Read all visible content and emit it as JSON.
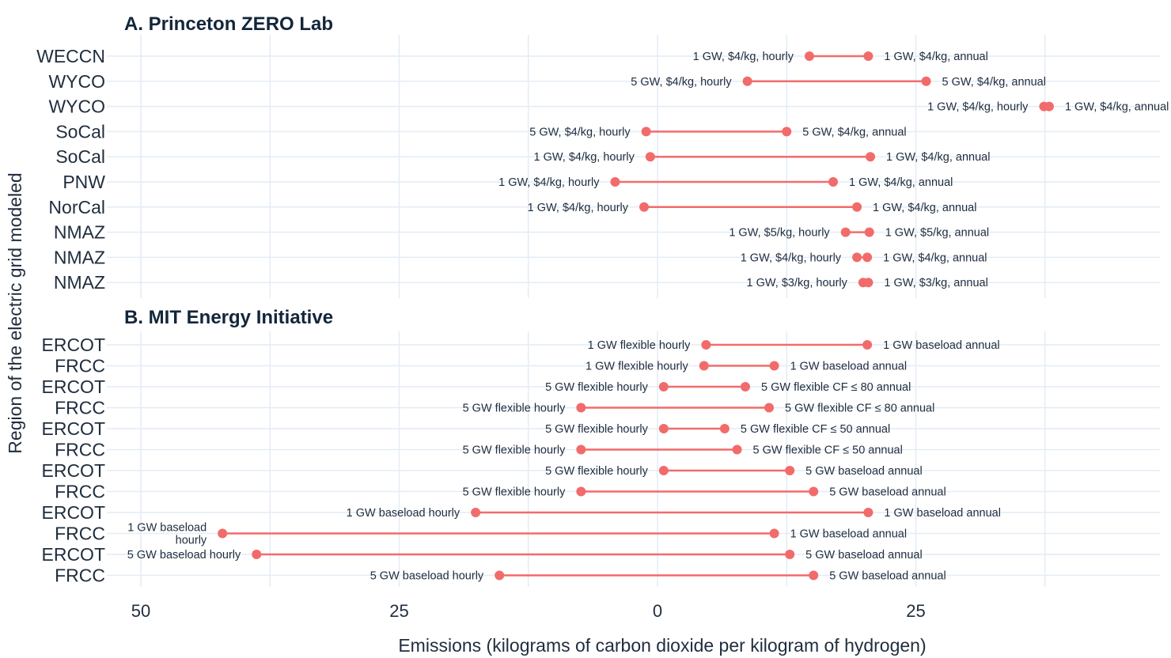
{
  "chart_data": {
    "type": "dumbbell",
    "xlabel": "Emissions (kilograms of carbon dioxide per kilogram of hydrogen)",
    "ylabel": "Region of the electric grid modeled",
    "xlim": [
      53,
      -48
    ],
    "x_reversed_labels": true,
    "x_ticks": [
      {
        "value": 50,
        "label": "50"
      },
      {
        "value": 25,
        "label": "25"
      },
      {
        "value": 0,
        "label": "0"
      },
      {
        "value": -25,
        "label": "25"
      }
    ],
    "x_minor_ticks": [
      37.5,
      12.5,
      -12.5,
      -37.5
    ],
    "colors": {
      "marker": "#f26b6b",
      "grid": "#e3ecf6",
      "text": "#1f2d3d"
    },
    "panels": [
      {
        "title": "A. Princeton ZERO Lab",
        "rows": [
          {
            "region": "WECCN",
            "hourly": {
              "x": -14.7,
              "label": "1 GW, $4/kg, hourly"
            },
            "annual": {
              "x": -20.4,
              "label": "1 GW, $4/kg, annual"
            }
          },
          {
            "region": "WYCO",
            "hourly": {
              "x": -8.7,
              "label": "5 GW, $4/kg, hourly"
            },
            "annual": {
              "x": -26.0,
              "label": "5 GW, $4/kg, annual"
            }
          },
          {
            "region": "WYCO",
            "hourly": {
              "x": -37.4,
              "label": "1 GW, $4/kg, hourly"
            },
            "annual": {
              "x": -37.9,
              "label": "1 GW, $4/kg, annual"
            }
          },
          {
            "region": "SoCal",
            "hourly": {
              "x": 1.1,
              "label": "5 GW, $4/kg, hourly"
            },
            "annual": {
              "x": -12.5,
              "label": "5 GW, $4/kg, annual"
            }
          },
          {
            "region": "SoCal",
            "hourly": {
              "x": 0.7,
              "label": "1 GW, $4/kg, hourly"
            },
            "annual": {
              "x": -20.6,
              "label": "1 GW, $4/kg, annual"
            }
          },
          {
            "region": "PNW",
            "hourly": {
              "x": 4.1,
              "label": "1 GW, $4/kg, hourly"
            },
            "annual": {
              "x": -17.0,
              "label": "1 GW, $4/kg, annual"
            }
          },
          {
            "region": "NorCal",
            "hourly": {
              "x": 1.3,
              "label": "1 GW, $4/kg, hourly"
            },
            "annual": {
              "x": -19.3,
              "label": "1 GW, $4/kg, annual"
            }
          },
          {
            "region": "NMAZ",
            "hourly": {
              "x": -18.2,
              "label": "1 GW, $5/kg, hourly"
            },
            "annual": {
              "x": -20.5,
              "label": "1 GW, $5/kg, annual"
            }
          },
          {
            "region": "NMAZ",
            "hourly": {
              "x": -19.3,
              "label": "1 GW, $4/kg, hourly"
            },
            "annual": {
              "x": -20.3,
              "label": "1 GW, $4/kg, annual"
            }
          },
          {
            "region": "NMAZ",
            "hourly": {
              "x": -19.9,
              "label": "1 GW, $3/kg, hourly"
            },
            "annual": {
              "x": -20.4,
              "label": "1 GW, $3/kg, annual"
            }
          }
        ]
      },
      {
        "title": "B. MIT Energy Initiative",
        "rows": [
          {
            "region": "ERCOT",
            "hourly": {
              "x": -4.7,
              "label": "1 GW flexible hourly"
            },
            "annual": {
              "x": -20.3,
              "label": "1 GW baseload annual"
            }
          },
          {
            "region": "FRCC",
            "hourly": {
              "x": -4.5,
              "label": "1 GW flexible hourly"
            },
            "annual": {
              "x": -11.3,
              "label": "1 GW baseload annual"
            }
          },
          {
            "region": "ERCOT",
            "hourly": {
              "x": -0.6,
              "label": "5 GW flexible hourly"
            },
            "annual": {
              "x": -8.5,
              "label": "5 GW flexible CF ≤ 80 annual"
            }
          },
          {
            "region": "FRCC",
            "hourly": {
              "x": 7.4,
              "label": "5 GW flexible hourly"
            },
            "annual": {
              "x": -10.8,
              "label": "5 GW flexible CF ≤ 80 annual"
            }
          },
          {
            "region": "ERCOT",
            "hourly": {
              "x": -0.6,
              "label": "5 GW flexible hourly"
            },
            "annual": {
              "x": -6.5,
              "label": "5 GW flexible CF ≤ 50 annual"
            }
          },
          {
            "region": "FRCC",
            "hourly": {
              "x": 7.4,
              "label": "5 GW flexible hourly"
            },
            "annual": {
              "x": -7.7,
              "label": "5 GW flexible CF ≤ 50 annual"
            }
          },
          {
            "region": "ERCOT",
            "hourly": {
              "x": -0.6,
              "label": "5 GW flexible hourly"
            },
            "annual": {
              "x": -12.8,
              "label": "5 GW baseload annual"
            }
          },
          {
            "region": "FRCC",
            "hourly": {
              "x": 7.4,
              "label": "5 GW flexible hourly"
            },
            "annual": {
              "x": -15.1,
              "label": "5 GW baseload annual"
            }
          },
          {
            "region": "ERCOT",
            "hourly": {
              "x": 17.6,
              "label": "1 GW baseload hourly"
            },
            "annual": {
              "x": -20.4,
              "label": "1 GW baseload annual"
            }
          },
          {
            "region": "FRCC",
            "hourly": {
              "x": 42.1,
              "label": "1 GW baseload hourly"
            },
            "annual": {
              "x": -11.3,
              "label": "1 GW baseload annual"
            }
          },
          {
            "region": "ERCOT",
            "hourly": {
              "x": 38.8,
              "label": "5 GW baseload hourly"
            },
            "annual": {
              "x": -12.8,
              "label": "5 GW baseload annual"
            }
          },
          {
            "region": "FRCC",
            "hourly": {
              "x": 15.3,
              "label": "5 GW baseload hourly"
            },
            "annual": {
              "x": -15.1,
              "label": "5 GW baseload annual"
            }
          }
        ]
      }
    ]
  }
}
